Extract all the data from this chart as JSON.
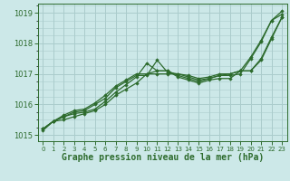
{
  "title": "Graphe pression niveau de la mer (hPa)",
  "xlabel": "Graphe pression niveau de la mer (hPa)",
  "bg_color": "#cce8e8",
  "grid_color": "#aacccc",
  "line_color": "#2d6b2d",
  "marker_color": "#2d6b2d",
  "ylim": [
    1014.8,
    1019.3
  ],
  "xlim": [
    -0.5,
    23.5
  ],
  "yticks": [
    1015,
    1016,
    1017,
    1018,
    1019
  ],
  "xticks": [
    0,
    1,
    2,
    3,
    4,
    5,
    6,
    7,
    8,
    9,
    10,
    11,
    12,
    13,
    14,
    15,
    16,
    17,
    18,
    19,
    20,
    21,
    22,
    23
  ],
  "series": [
    [
      1015.2,
      1015.45,
      1015.5,
      1015.6,
      1015.7,
      1015.8,
      1016.0,
      1016.3,
      1016.5,
      1016.7,
      1017.0,
      1017.1,
      1017.1,
      1016.9,
      1016.8,
      1016.7,
      1016.8,
      1016.85,
      1016.85,
      1017.1,
      1017.55,
      1018.1,
      1018.75,
      1018.95
    ],
    [
      1015.2,
      1015.45,
      1015.6,
      1015.7,
      1015.75,
      1015.85,
      1016.1,
      1016.4,
      1016.65,
      1016.9,
      1017.35,
      1017.1,
      1017.1,
      1016.95,
      1016.85,
      1016.75,
      1016.85,
      1016.95,
      1016.95,
      1017.0,
      1017.5,
      1018.05,
      1018.75,
      1019.05
    ],
    [
      1015.2,
      1015.45,
      1015.6,
      1015.75,
      1015.8,
      1016.0,
      1016.2,
      1016.55,
      1016.75,
      1016.95,
      1016.95,
      1017.45,
      1017.05,
      1017.0,
      1016.9,
      1016.8,
      1016.85,
      1016.95,
      1017.0,
      1017.1,
      1017.1,
      1017.5,
      1018.2,
      1018.85
    ],
    [
      1015.15,
      1015.45,
      1015.65,
      1015.8,
      1015.85,
      1016.05,
      1016.3,
      1016.6,
      1016.8,
      1017.0,
      1017.0,
      1017.0,
      1017.0,
      1017.0,
      1016.95,
      1016.85,
      1016.9,
      1017.0,
      1017.0,
      1017.1,
      1017.1,
      1017.45,
      1018.15,
      1018.85
    ]
  ],
  "ytick_fontsize": 6,
  "xtick_fontsize": 5,
  "xlabel_fontsize": 7
}
